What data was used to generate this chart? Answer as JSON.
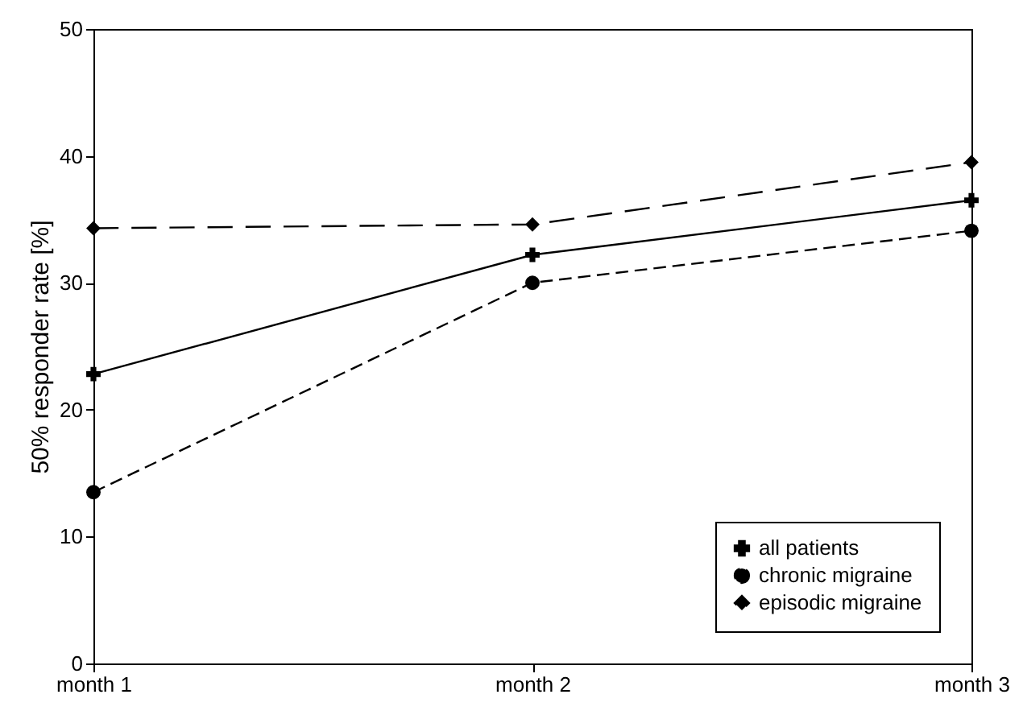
{
  "chart_data": {
    "type": "line",
    "ylabel": "50% responder rate [%]",
    "categories": [
      "month 1",
      "month 2",
      "month 3"
    ],
    "ylim": [
      0,
      50
    ],
    "yticks": [
      0,
      10,
      20,
      30,
      40,
      50
    ],
    "grid": false,
    "legend": "bottom right",
    "series": [
      {
        "name": "all patients",
        "color": "#000000",
        "values": [
          22.8,
          32.2,
          36.5
        ],
        "marker": "cross",
        "line_style": "solid"
      },
      {
        "name": "chronic migraine",
        "color": "#000000",
        "values": [
          13.5,
          30.0,
          34.1
        ],
        "marker": "circle",
        "line_style": "dashed"
      },
      {
        "name": "episodic migraine",
        "color": "#000000",
        "values": [
          34.3,
          34.6,
          39.5
        ],
        "marker": "diamond",
        "line_style": "dashed"
      }
    ]
  }
}
